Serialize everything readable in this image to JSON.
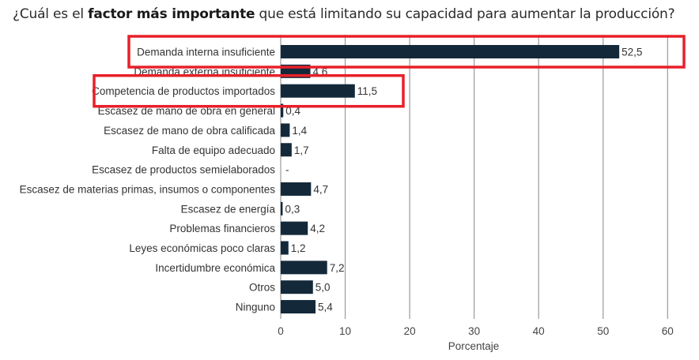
{
  "title": {
    "prefix": "¿Cuál es el ",
    "bold": "factor más importante",
    "suffix": " que está limitando su capacidad para aumentar la producción?"
  },
  "chart_data": {
    "type": "bar",
    "orientation": "horizontal",
    "categories": [
      "Demanda interna insuficiente",
      "Demanda externa insuficiente",
      "Competencia de productos importados",
      "Escasez de mano de obra en general",
      "Escasez de mano de obra calificada",
      "Falta de equipo adecuado",
      "Escasez de productos semielaborados",
      "Escasez de materias primas, insumos o componentes",
      "Escasez de energía",
      "Problemas financieros",
      "Leyes económicas poco claras",
      "Incertidumbre económica",
      "Otros",
      "Ninguno"
    ],
    "values": [
      52.5,
      4.6,
      11.5,
      0.4,
      1.4,
      1.7,
      null,
      4.7,
      0.3,
      4.2,
      1.2,
      7.2,
      5.0,
      5.4
    ],
    "value_labels": [
      "52,5",
      "4,6",
      "11,5",
      "0,4",
      "1,4",
      "1,7",
      "-",
      "4,7",
      "0,3",
      "4,2",
      "1,2",
      "7,2",
      "5,0",
      "5,4"
    ],
    "xlabel": "Porcentaje",
    "xlim": [
      0,
      60
    ],
    "xticks": [
      0,
      10,
      20,
      30,
      40,
      50,
      60
    ],
    "grid": "vertical",
    "highlighted": [
      "Demanda interna insuficiente",
      "Competencia de productos importados"
    ],
    "colors": {
      "bar": "#13293a",
      "grid": "#9a9a9a",
      "highlight": "#e8202a"
    }
  }
}
